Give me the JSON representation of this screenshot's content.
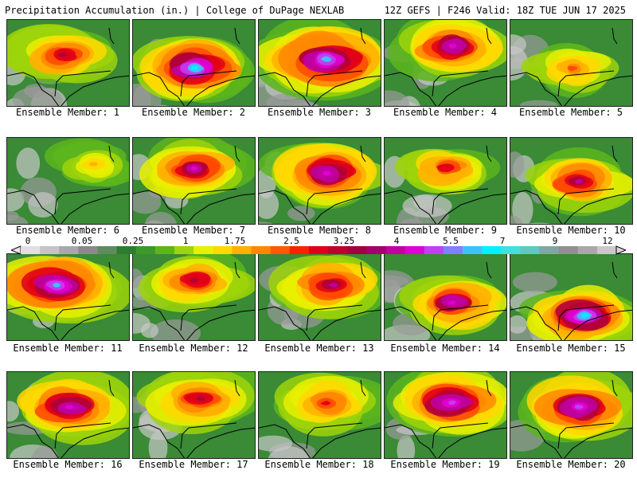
{
  "header": {
    "left": "Precipitation Accumulation (in.) | College of DuPage NEXLAB",
    "right": "12Z GEFS | F246 Valid: 18Z TUE JUN 17 2025"
  },
  "caption_prefix": "Ensemble Member: ",
  "members": [
    {
      "id": 1,
      "caption": "Ensemble Member: 1",
      "intensity": 0.55,
      "core": [
        0.45,
        0.4
      ],
      "spread": 0.55
    },
    {
      "id": 2,
      "caption": "Ensemble Member: 2",
      "intensity": 0.85,
      "core": [
        0.5,
        0.55
      ],
      "spread": 0.65
    },
    {
      "id": 3,
      "caption": "Ensemble Member: 3",
      "intensity": 0.8,
      "core": [
        0.55,
        0.45
      ],
      "spread": 0.75
    },
    {
      "id": 4,
      "caption": "Ensemble Member: 4",
      "intensity": 0.7,
      "core": [
        0.55,
        0.3
      ],
      "spread": 0.6
    },
    {
      "id": 5,
      "caption": "Ensemble Member: 5",
      "intensity": 0.4,
      "core": [
        0.5,
        0.55
      ],
      "spread": 0.45
    },
    {
      "id": 6,
      "caption": "Ensemble Member: 6",
      "intensity": 0.25,
      "core": [
        0.7,
        0.3
      ],
      "spread": 0.4
    },
    {
      "id": 7,
      "caption": "Ensemble Member: 7",
      "intensity": 0.65,
      "core": [
        0.5,
        0.35
      ],
      "spread": 0.55
    },
    {
      "id": 8,
      "caption": "Ensemble Member: 8",
      "intensity": 0.7,
      "core": [
        0.55,
        0.4
      ],
      "spread": 0.65
    },
    {
      "id": 9,
      "caption": "Ensemble Member: 9",
      "intensity": 0.5,
      "core": [
        0.5,
        0.35
      ],
      "spread": 0.45
    },
    {
      "id": 10,
      "caption": "Ensemble Member: 10",
      "intensity": 0.6,
      "core": [
        0.55,
        0.5
      ],
      "spread": 0.55
    },
    {
      "id": 11,
      "caption": "Ensemble Member: 11",
      "intensity": 0.8,
      "core": [
        0.4,
        0.35
      ],
      "spread": 0.7
    },
    {
      "id": 12,
      "caption": "Ensemble Member: 12",
      "intensity": 0.55,
      "core": [
        0.5,
        0.3
      ],
      "spread": 0.55
    },
    {
      "id": 13,
      "caption": "Ensemble Member: 13",
      "intensity": 0.6,
      "core": [
        0.6,
        0.35
      ],
      "spread": 0.6
    },
    {
      "id": 14,
      "caption": "Ensemble Member: 14",
      "intensity": 0.7,
      "core": [
        0.55,
        0.55
      ],
      "spread": 0.55
    },
    {
      "id": 15,
      "caption": "Ensemble Member: 15",
      "intensity": 0.85,
      "core": [
        0.6,
        0.7
      ],
      "spread": 0.6
    },
    {
      "id": 16,
      "caption": "Ensemble Member: 16",
      "intensity": 0.7,
      "core": [
        0.5,
        0.4
      ],
      "spread": 0.65
    },
    {
      "id": 17,
      "caption": "Ensemble Member: 17",
      "intensity": 0.55,
      "core": [
        0.55,
        0.3
      ],
      "spread": 0.6
    },
    {
      "id": 18,
      "caption": "Ensemble Member: 18",
      "intensity": 0.45,
      "core": [
        0.55,
        0.35
      ],
      "spread": 0.55
    },
    {
      "id": 19,
      "caption": "Ensemble Member: 19",
      "intensity": 0.75,
      "core": [
        0.55,
        0.35
      ],
      "spread": 0.65
    },
    {
      "id": 20,
      "caption": "Ensemble Member: 20",
      "intensity": 0.75,
      "core": [
        0.55,
        0.4
      ],
      "spread": 0.65
    }
  ],
  "colorbar": {
    "labels": [
      "0",
      "0.05",
      "0.25",
      "1",
      "1.75",
      "2.5",
      "3.25",
      "4",
      "5.5",
      "7",
      "9",
      "12"
    ],
    "colors": [
      "#e0e0e0",
      "#c4c4c4",
      "#a8a8a8",
      "#8a8a8a",
      "#5e8c5e",
      "#2e7d2e",
      "#3c9a2c",
      "#5cb51c",
      "#9ed40a",
      "#e8f000",
      "#ffd800",
      "#ffb000",
      "#ff8800",
      "#ff5a00",
      "#ff2000",
      "#e00018",
      "#c0002a",
      "#a0003c",
      "#a00070",
      "#c000a0",
      "#e000d0",
      "#c040f0",
      "#8080ff",
      "#40c0ff",
      "#00f0ff",
      "#40e0e0",
      "#60c8c0",
      "#80a8a0",
      "#909090",
      "#a8a8a8",
      "#c8c8c8"
    ]
  }
}
